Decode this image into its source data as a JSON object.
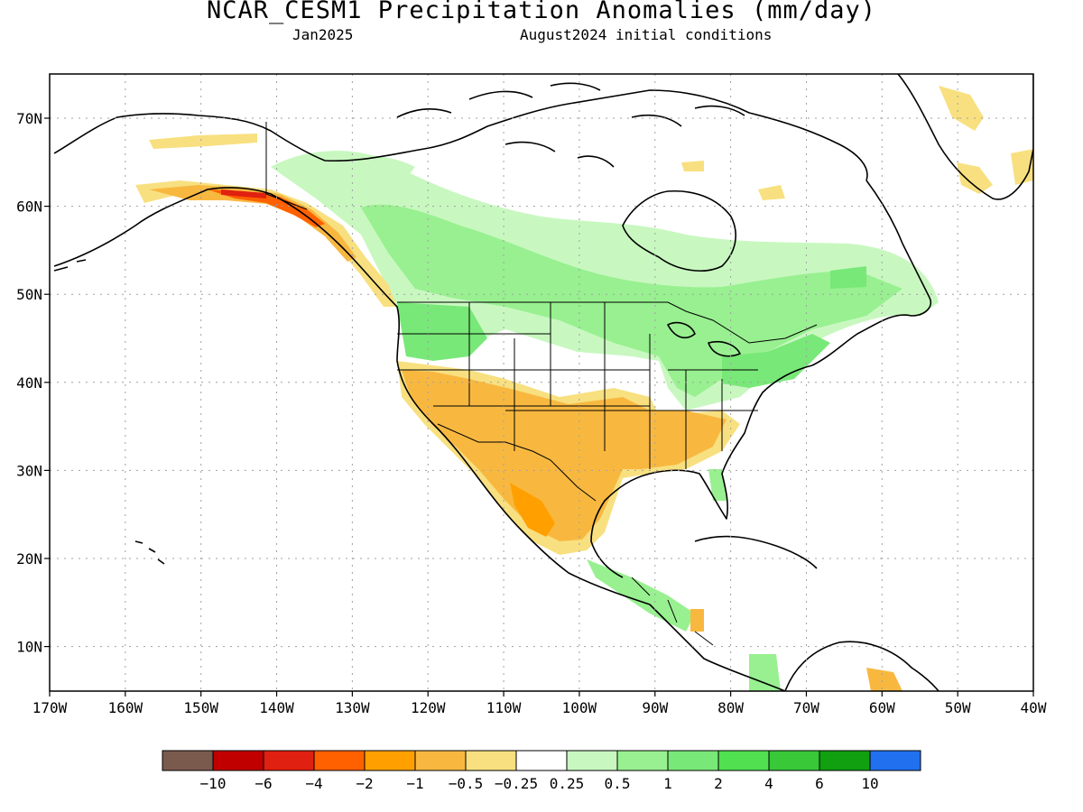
{
  "header": {
    "title": "NCAR_CESM1 Precipitation Anomalies (mm/day)",
    "month": "Jan2025",
    "init": "August2024 initial conditions"
  },
  "axes": {
    "lon_labels": [
      "170W",
      "160W",
      "150W",
      "140W",
      "130W",
      "120W",
      "110W",
      "100W",
      "90W",
      "80W",
      "70W",
      "60W",
      "50W",
      "40W"
    ],
    "lat_labels": [
      "70N",
      "60N",
      "50N",
      "40N",
      "30N",
      "20N",
      "10N"
    ]
  },
  "legend": {
    "colors": [
      "#7b5a4e",
      "#c00000",
      "#e02010",
      "#ff6000",
      "#ffa000",
      "#f8b840",
      "#f8e080",
      "#ffffff",
      "#c8f8c0",
      "#98f090",
      "#78e878",
      "#50e050",
      "#38c838",
      "#10a010",
      "#2070f0"
    ],
    "labels": [
      "−10",
      "−6",
      "−4",
      "−2",
      "−1",
      "−0.5",
      "−0.25",
      "0.25",
      "0.5",
      "1",
      "2",
      "4",
      "6",
      "10"
    ]
  }
}
